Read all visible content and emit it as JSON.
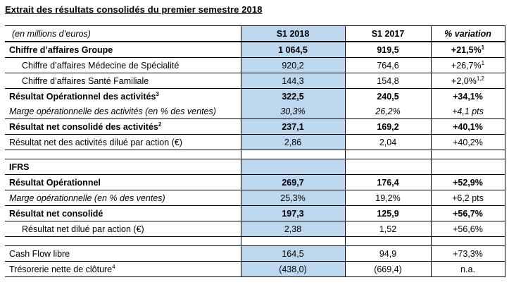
{
  "title": "Extrait des résultats consolidés du premier semestre 2018",
  "colors": {
    "highlight_column": "#BDD7EE",
    "border": "#000000",
    "text": "#000000"
  },
  "table": {
    "columns": [
      "(en millions d’euros)",
      "S1 2018",
      "S1 2017",
      "% variation"
    ],
    "rows": [
      {
        "label": "Chiffre d’affaires Groupe",
        "label_sup": "",
        "indent": false,
        "label_style": "bold",
        "value_style": "bold",
        "s1_2018": "1 064,5",
        "s1_2017": "919,5",
        "variation": "+21,5%",
        "var_sup": "1",
        "gap": false,
        "no_bottom_border": false
      },
      {
        "label": "Chiffre d’affaires Médecine de Spécialité",
        "label_sup": "",
        "indent": true,
        "label_style": "normal",
        "value_style": "normal",
        "s1_2018": "920,2",
        "s1_2017": "764,6",
        "variation": "+26,7%",
        "var_sup": "1",
        "gap": false,
        "no_bottom_border": false
      },
      {
        "label": "Chiffre d’affaires Santé Familiale",
        "label_sup": "",
        "indent": true,
        "label_style": "normal",
        "value_style": "normal",
        "s1_2018": "144,3",
        "s1_2017": "154,8",
        "variation": "+2,0%",
        "var_sup": "1,2",
        "gap": false,
        "no_bottom_border": false
      },
      {
        "label": "Résultat Opérationnel des activités",
        "label_sup": "3",
        "indent": false,
        "label_style": "bold",
        "value_style": "bold",
        "s1_2018": "322,5",
        "s1_2017": "240,5",
        "variation": "+34,1%",
        "var_sup": "",
        "gap": false,
        "no_bottom_border": true
      },
      {
        "label": "Marge opérationnelle des activités (en % des ventes)",
        "label_sup": "",
        "indent": false,
        "label_style": "italic",
        "value_style": "italic",
        "s1_2018": "30,3%",
        "s1_2017": "26,2%",
        "variation": "+4,1 pts",
        "var_sup": "",
        "gap": false,
        "no_bottom_border": false
      },
      {
        "label": "Résultat net consolidé des activités",
        "label_sup": "2",
        "indent": false,
        "label_style": "bold",
        "value_style": "bold",
        "s1_2018": "237,1",
        "s1_2017": "169,2",
        "variation": "+40,1%",
        "var_sup": "",
        "gap": false,
        "no_bottom_border": false
      },
      {
        "label": "Résultat net des activités dilué par action (€)",
        "label_sup": "",
        "indent": false,
        "label_style": "normal",
        "value_style": "normal",
        "s1_2018": "2,86",
        "s1_2017": "2,04",
        "variation": "+40,2%",
        "var_sup": "",
        "gap": false,
        "no_bottom_border": false
      },
      {
        "gap": true
      },
      {
        "label": "IFRS",
        "label_sup": "",
        "indent": false,
        "label_style": "bold",
        "value_style": "bold",
        "s1_2018": "",
        "s1_2017": "",
        "variation": "",
        "var_sup": "",
        "gap": false,
        "no_bottom_border": false
      },
      {
        "label": "Résultat Opérationnel",
        "label_sup": "",
        "indent": false,
        "label_style": "bold",
        "value_style": "bold",
        "s1_2018": "269,7",
        "s1_2017": "176,4",
        "variation": "+52,9%",
        "var_sup": "",
        "gap": false,
        "no_bottom_border": false
      },
      {
        "label": "Marge opérationnelle (en % des ventes)",
        "label_sup": "",
        "indent": false,
        "label_style": "italic",
        "value_style": "normal",
        "s1_2018": "25,3%",
        "s1_2017": "19,2%",
        "variation": "+6,2 pts",
        "var_sup": "",
        "gap": false,
        "no_bottom_border": false
      },
      {
        "label": "Résultat net consolidé",
        "label_sup": "",
        "indent": false,
        "label_style": "bold",
        "value_style": "bold",
        "s1_2018": "197,3",
        "s1_2017": "125,9",
        "variation": "+56,7%",
        "var_sup": "",
        "gap": false,
        "no_bottom_border": false
      },
      {
        "label": "Résultat net dilué par action (€)",
        "label_sup": "",
        "indent": true,
        "label_style": "normal",
        "value_style": "normal",
        "s1_2018": "2,38",
        "s1_2017": "1,52",
        "variation": "+56,6%",
        "var_sup": "",
        "gap": false,
        "no_bottom_border": false
      },
      {
        "gap": true
      },
      {
        "label": "Cash Flow libre",
        "label_sup": "",
        "indent": false,
        "label_style": "normal",
        "value_style": "normal",
        "s1_2018": "164,5",
        "s1_2017": "94,9",
        "variation": "+73,3%",
        "var_sup": "",
        "gap": false,
        "no_bottom_border": false
      },
      {
        "label": "Trésorerie nette de clôture",
        "label_sup": "4",
        "indent": false,
        "label_style": "normal",
        "value_style": "normal",
        "s1_2018": "(438,0)",
        "s1_2017": "(669,4)",
        "variation": "n.a.",
        "var_sup": "",
        "gap": false,
        "no_bottom_border": false
      }
    ]
  }
}
